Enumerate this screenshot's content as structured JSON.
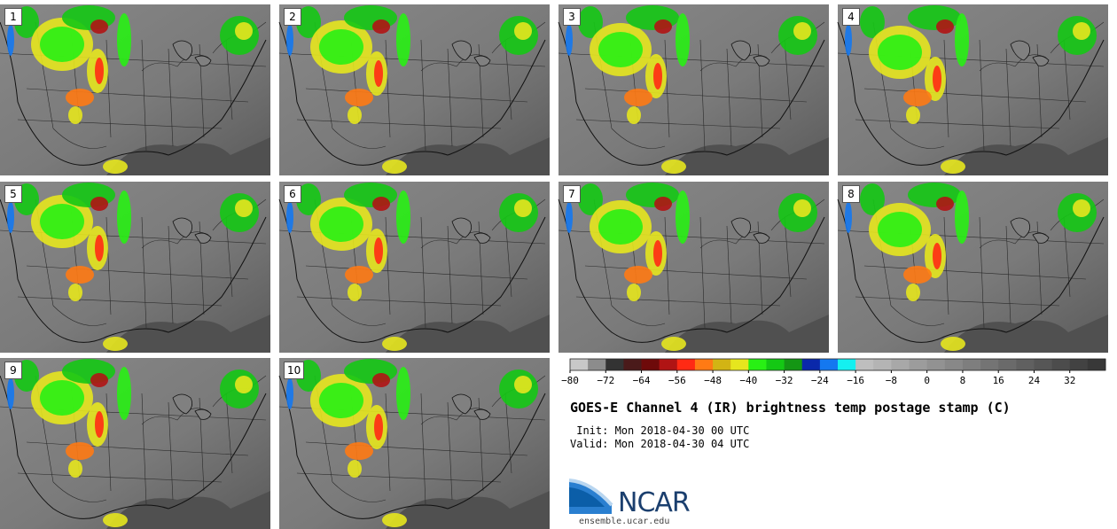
{
  "panels": [
    "1",
    "2",
    "3",
    "4",
    "5",
    "6",
    "7",
    "8",
    "9",
    "10"
  ],
  "colorbar": {
    "colors": [
      "#c8c8c8",
      "#8c8c8c",
      "#333333",
      "#4a1a1a",
      "#6e0a0a",
      "#b01414",
      "#ff2a14",
      "#ff7a14",
      "#d2b414",
      "#e6e61e",
      "#28f014",
      "#14c814",
      "#149614",
      "#0a28aa",
      "#1478f0",
      "#14f0f0",
      "#bebebe",
      "#b4b4b4",
      "#a8a8a8",
      "#9c9c9c",
      "#929292",
      "#888888",
      "#7e7e7e",
      "#747474",
      "#6a6a6a",
      "#606060",
      "#565656",
      "#4c4c4c",
      "#424242",
      "#383838"
    ],
    "ticks": [
      "−80",
      "−72",
      "−64",
      "−56",
      "−48",
      "−40",
      "−32",
      "−24",
      "−16",
      "−8",
      "0",
      "8",
      "16",
      "24",
      "32"
    ]
  },
  "chart_data": {
    "type": "heatmap",
    "title": "GOES-E Channel 4 (IR) brightness temp postage stamp (C)",
    "members": [
      1,
      2,
      3,
      4,
      5,
      6,
      7,
      8,
      9,
      10
    ],
    "colorbar_range": [
      -80,
      40
    ],
    "colorbar_ticks": [
      -80,
      -72,
      -64,
      -56,
      -48,
      -40,
      -32,
      -24,
      -16,
      -8,
      0,
      8,
      16,
      24,
      32
    ],
    "units": "C"
  },
  "info": {
    "title": "GOES-E Channel 4 (IR) brightness temp postage stamp (C)",
    "init": " Init: Mon 2018-04-30 00 UTC",
    "valid": "Valid: Mon 2018-04-30 04 UTC"
  },
  "logo": {
    "text": "NCAR",
    "url": "ensemble.ucar.edu"
  }
}
